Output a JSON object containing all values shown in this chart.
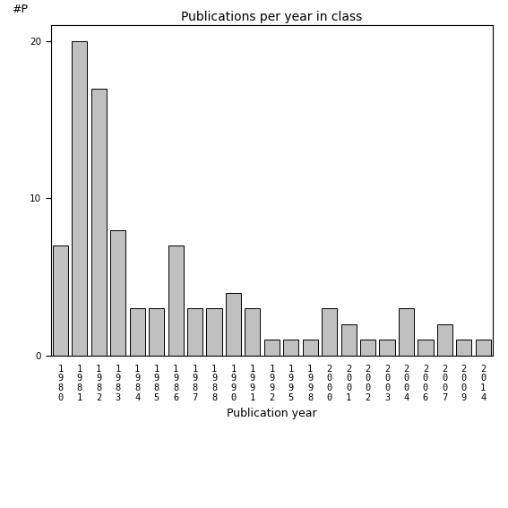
{
  "categories": [
    "1980",
    "1981",
    "1982",
    "1983",
    "1984",
    "1985",
    "1986",
    "1987",
    "1988",
    "1990",
    "1991",
    "1992",
    "1995",
    "1998",
    "2000",
    "2001",
    "2002",
    "2003",
    "2004",
    "2006",
    "2007",
    "2009",
    "2014"
  ],
  "values": [
    7,
    20,
    17,
    8,
    3,
    3,
    7,
    3,
    3,
    4,
    3,
    1,
    1,
    1,
    3,
    2,
    1,
    1,
    3,
    1,
    2,
    1,
    1
  ],
  "bar_color": "#c0c0c0",
  "bar_edgecolor": "#000000",
  "title": "Publications per year in class",
  "xlabel": "Publication year",
  "ylabel": "#P",
  "ylim": [
    0,
    21
  ],
  "yticks": [
    0,
    10,
    20
  ],
  "background_color": "#ffffff",
  "title_fontsize": 10,
  "label_fontsize": 9,
  "tick_fontsize": 7.5
}
